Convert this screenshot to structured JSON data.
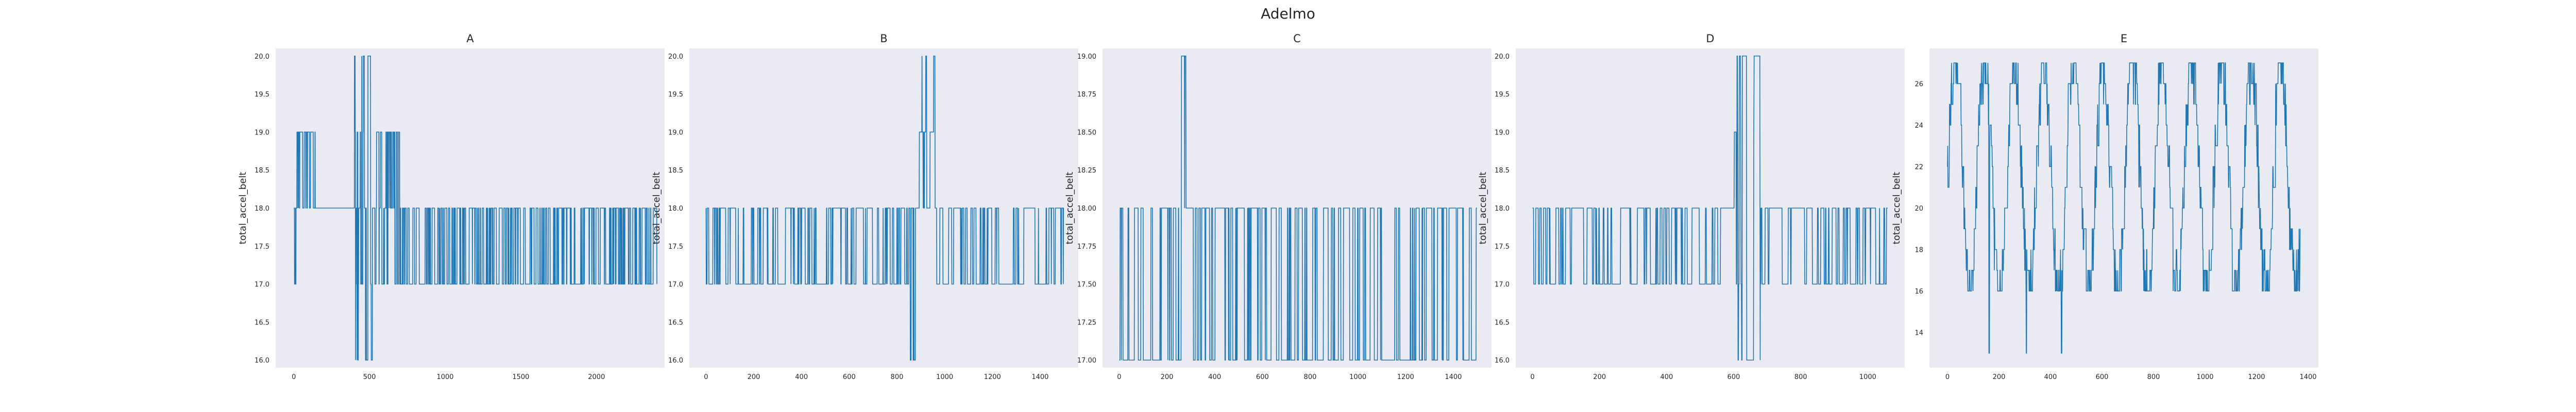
{
  "figure": {
    "title": "Adelmo"
  },
  "colors": {
    "line": "#1f77b4",
    "panel_bg": "#eaeaf2",
    "grid": "#ffffff",
    "text": "#262626"
  },
  "chart_data": [
    {
      "type": "line",
      "title": "A",
      "xlabel": "",
      "ylabel": "total_accel_belt",
      "xlim": [
        -120,
        2450
      ],
      "ylim": [
        15.9,
        20.1
      ],
      "xticks": [
        0,
        500,
        1000,
        1500,
        2000
      ],
      "yticks": [
        16.0,
        16.5,
        17.0,
        17.5,
        18.0,
        18.5,
        19.0,
        19.5,
        20.0
      ],
      "ytick_labels": [
        "16.0",
        "16.5",
        "17.0",
        "17.5",
        "18.0",
        "18.5",
        "19.0",
        "19.5",
        "20.0"
      ],
      "grid": false,
      "n_points": 2400,
      "segments": [
        {
          "x": [
            0,
            20
          ],
          "levels": [
            18,
            17
          ]
        },
        {
          "x": [
            20,
            160
          ],
          "levels": [
            19,
            18
          ]
        },
        {
          "x": [
            160,
            400
          ],
          "levels": [
            18
          ]
        },
        {
          "x": [
            400,
            520
          ],
          "levels": [
            18,
            19,
            17,
            20,
            16
          ]
        },
        {
          "x": [
            520,
            700
          ],
          "levels": [
            18,
            19,
            17
          ]
        },
        {
          "x": [
            700,
            2400
          ],
          "levels": [
            17,
            18
          ]
        }
      ]
    },
    {
      "type": "line",
      "title": "B",
      "xlabel": "",
      "ylabel": "total_accel_belt",
      "xlim": [
        -70,
        1560
      ],
      "ylim": [
        15.9,
        20.1
      ],
      "xticks": [
        0,
        200,
        400,
        600,
        800,
        1000,
        1200,
        1400
      ],
      "yticks": [
        16.0,
        16.5,
        17.0,
        17.5,
        18.0,
        18.5,
        19.0,
        19.5,
        20.0
      ],
      "ytick_labels": [
        "16.0",
        "16.5",
        "17.0",
        "17.5",
        "18.0",
        "18.5",
        "19.0",
        "19.5",
        "20.0"
      ],
      "grid": false,
      "n_points": 1500,
      "segments": [
        {
          "x": [
            0,
            850
          ],
          "levels": [
            18,
            17
          ]
        },
        {
          "x": [
            850,
            880
          ],
          "levels": [
            18,
            16
          ]
        },
        {
          "x": [
            880,
            960
          ],
          "levels": [
            18,
            19,
            20
          ]
        },
        {
          "x": [
            960,
            1500
          ],
          "levels": [
            18,
            17
          ]
        }
      ]
    },
    {
      "type": "line",
      "title": "C",
      "xlabel": "",
      "ylabel": "total_accel_belt",
      "xlim": [
        -70,
        1560
      ],
      "ylim": [
        16.95,
        19.05
      ],
      "xticks": [
        0,
        200,
        400,
        600,
        800,
        1000,
        1200,
        1400
      ],
      "yticks": [
        17.0,
        17.25,
        17.5,
        17.75,
        18.0,
        18.25,
        18.5,
        18.75,
        19.0
      ],
      "ytick_labels": [
        "17.00",
        "17.25",
        "17.50",
        "17.75",
        "18.00",
        "18.25",
        "18.50",
        "18.75",
        "19.00"
      ],
      "grid": false,
      "n_points": 1500,
      "segments": [
        {
          "x": [
            0,
            260
          ],
          "levels": [
            18,
            17
          ]
        },
        {
          "x": [
            260,
            280
          ],
          "levels": [
            18,
            19
          ]
        },
        {
          "x": [
            280,
            1500
          ],
          "levels": [
            18,
            17
          ]
        }
      ]
    },
    {
      "type": "line",
      "title": "D",
      "xlabel": "",
      "ylabel": "total_accel_belt",
      "xlim": [
        -50,
        1110
      ],
      "ylim": [
        15.9,
        20.1
      ],
      "xticks": [
        0,
        200,
        400,
        600,
        800,
        1000
      ],
      "yticks": [
        16.0,
        16.5,
        17.0,
        17.5,
        18.0,
        18.5,
        19.0,
        19.5,
        20.0
      ],
      "ytick_labels": [
        "16.0",
        "16.5",
        "17.0",
        "17.5",
        "18.0",
        "18.5",
        "19.0",
        "19.5",
        "20.0"
      ],
      "grid": false,
      "n_points": 1060,
      "segments": [
        {
          "x": [
            0,
            600
          ],
          "levels": [
            18,
            17
          ]
        },
        {
          "x": [
            600,
            680
          ],
          "levels": [
            18,
            19,
            20,
            17,
            16
          ]
        },
        {
          "x": [
            680,
            1060
          ],
          "levels": [
            18,
            17
          ]
        }
      ]
    },
    {
      "type": "line",
      "title": "E",
      "xlabel": "",
      "ylabel": "total_accel_belt",
      "xlim": [
        -70,
        1440
      ],
      "ylim": [
        12.3,
        27.7
      ],
      "xticks": [
        0,
        200,
        400,
        600,
        800,
        1000,
        1200,
        1400
      ],
      "yticks": [
        14,
        16,
        18,
        20,
        22,
        24,
        26
      ],
      "ytick_labels": [
        "14",
        "16",
        "18",
        "20",
        "22",
        "24",
        "26"
      ],
      "grid": false,
      "n_points": 1370,
      "segments": [
        {
          "x": [
            0,
            1370
          ],
          "wave": {
            "period": 115,
            "min": 16,
            "max": 27,
            "noise": 1.5
          }
        }
      ]
    }
  ]
}
